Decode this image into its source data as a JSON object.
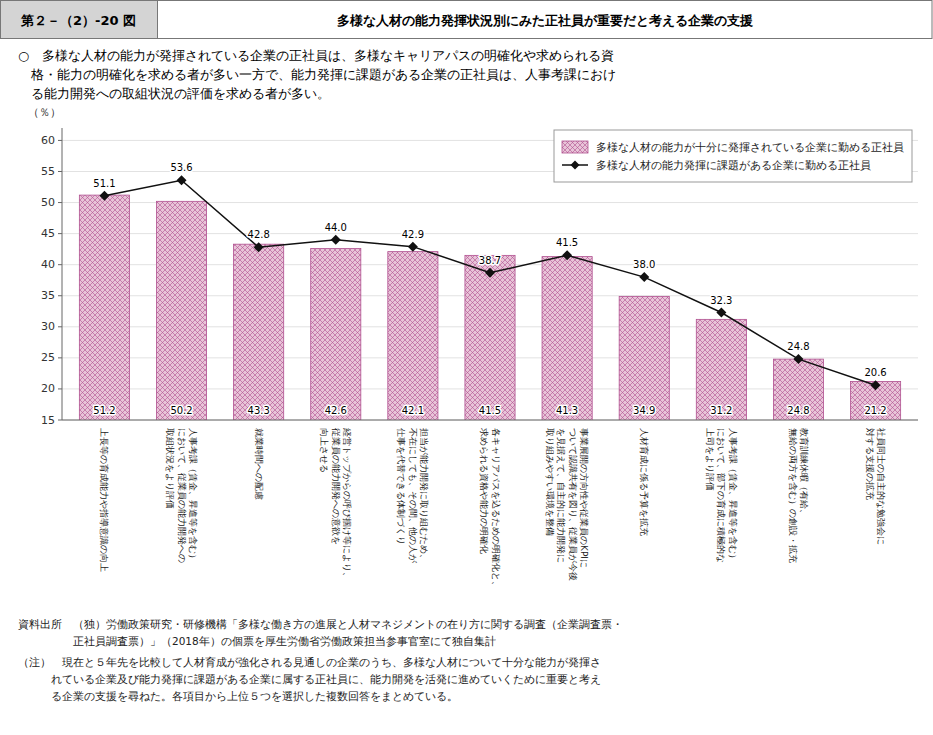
{
  "chart_data": {
    "type": "bar",
    "figure_number": "第２－（2）-20 図",
    "title": "多様な人材の能力発揮状況別にみた正社員が重要だと考える企業の支援",
    "subtitle": [
      "○　多様な人材の能力が発揮されている企業の正社員は、多様なキャリアパスの明確化や求められる資",
      "　格・能力の明確化を求める者が多い一方で、能力発揮に課題がある企業の正社員は、人事考課におけ",
      "　る能力開発への取組状況の評価を求める者が多い。"
    ],
    "y_label": "（％）",
    "categories": [
      "上長等の育成能力や指導意識の向上",
      "人事考課（賃金、昇進等を含む）\nにおいて、従業員の能力開発への\n取組状況をより評価",
      "就業時間への配慮",
      "経営トップからの呼び掴け等により、\n従業員の能力開発への意欲を\n向上させる",
      "担当が能力開発に取り組むため、\n不在にしても、その間、他の人が\n仕事を代替できる体制づくり",
      "各キャリアパスを込るための明確化と、\n求められる資格や能力の明確化",
      "事業展開の方向性や従業員のKPIに\nついて認識共有を図り、従業員が今後\nを見据えて、自主的に能力開発に\n取り組みやすい環境を整備",
      "人材育成に係る予算を拡充",
      "人事考課（賃金、昇進等を含む）\nにおいて、部下の育成に積極的な\n上司をより評価",
      "教育訓練休暇（有給、\n無給の両方を含む）の創設・拡充",
      "社員同士の自主的な勉強会に\n対する支援の拡充"
    ],
    "series": [
      {
        "name": "多様な人材の能力が十分に発揮されている企業に勤める正社員",
        "type": "bar",
        "color": "#e8c4d8",
        "values": [
          51.2,
          50.2,
          43.3,
          42.6,
          42.1,
          41.5,
          41.3,
          34.9,
          31.2,
          24.8,
          21.2
        ]
      },
      {
        "name": "多様な人材の能力発揮に課題がある企業に勤める正社員",
        "type": "line",
        "color": "#111111",
        "marker": "diamond",
        "values": [
          51.1,
          53.6,
          42.8,
          44.0,
          42.9,
          38.7,
          41.5,
          38.0,
          32.3,
          24.8,
          20.6
        ],
        "value_labels": [
          "51.1",
          "53.6",
          "42.8",
          "44.0",
          "42.9",
          "38.7",
          "41.5",
          "38.0",
          "32.3",
          "24.8",
          "20.6"
        ]
      }
    ],
    "ylim": [
      15,
      62
    ],
    "yticks": [
      15,
      20,
      25,
      30,
      35,
      40,
      45,
      50,
      55,
      60
    ],
    "grid": true,
    "legend": "top-right",
    "data_labels": true,
    "source": [
      "資料出所　（独）労働政策研究・研修機構「多様な働き方の進展と人材マネジメントの在り方に関する調査（企業調査票・",
      "　　　　　正社員調査票）」（2018年）の個票を厚生労働省労働政策担当参事官室にて独自集計"
    ],
    "notes": [
      "（注）　現在と５年先を比較して人材育成が強化される見通しの企業のうち、多様な人材について十分な能力が発揮さ",
      "　　　れている企業及び能力発揮に課題がある企業に属する正社員に、能力開発を活発に進めていくために重要と考え",
      "　　　る企業の支援を尋ねた。各項目から上位５つを選択した複数回答をまとめている。"
    ]
  }
}
